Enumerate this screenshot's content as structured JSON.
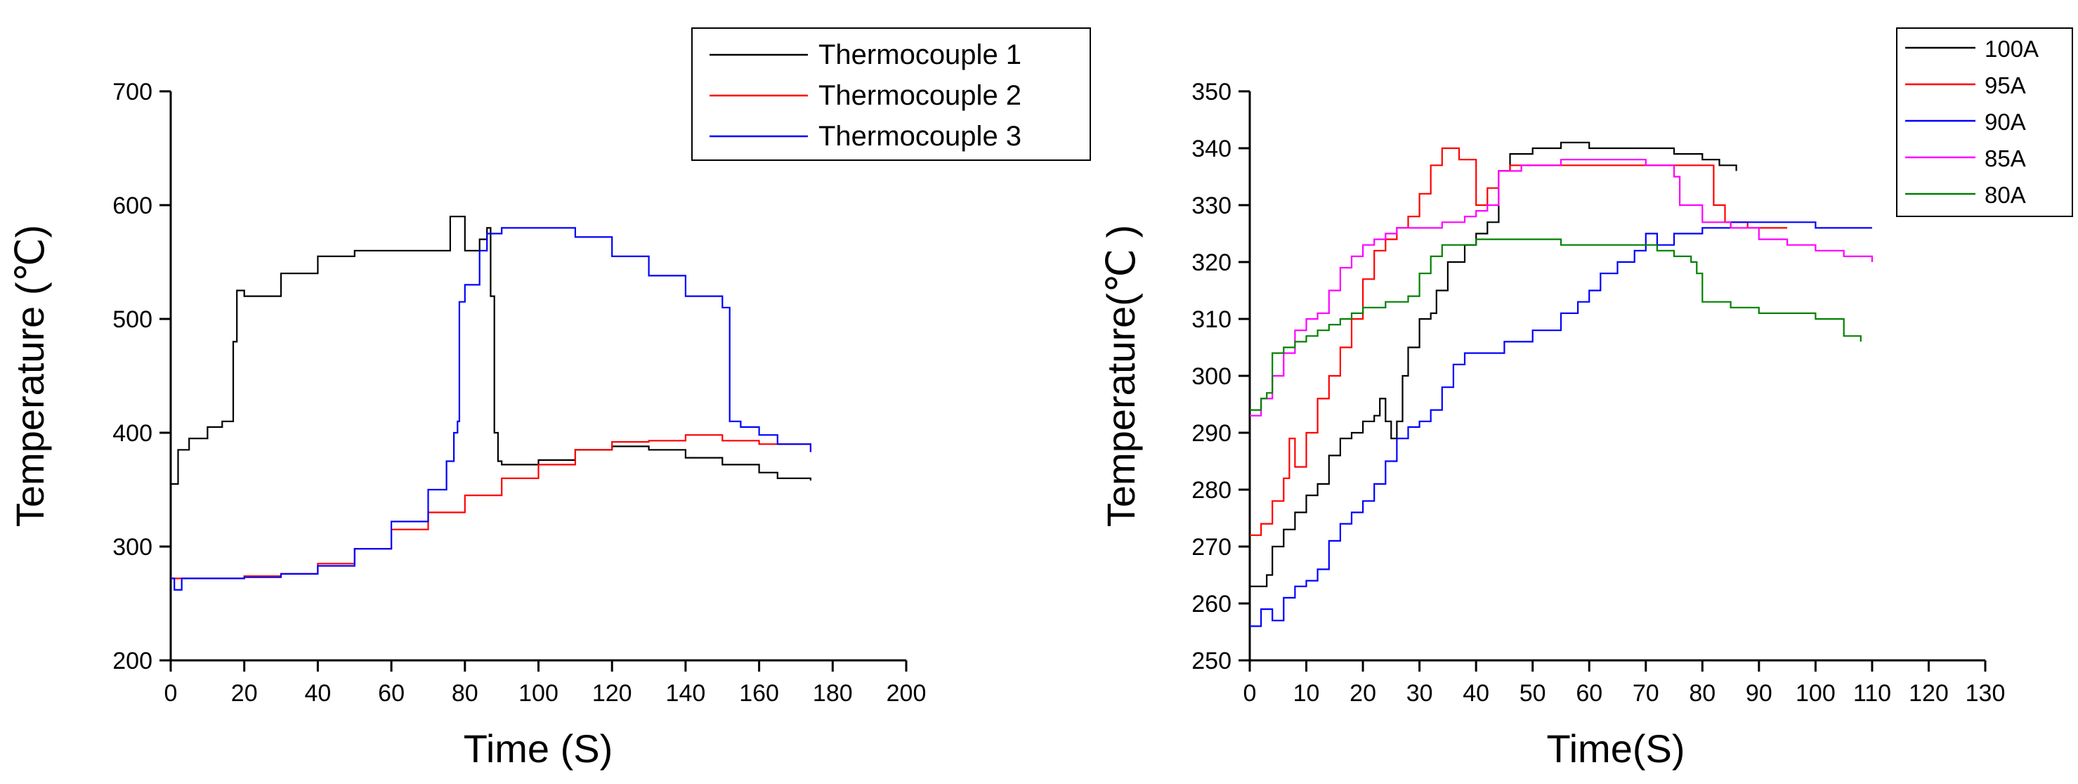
{
  "chart_data": [
    {
      "type": "line",
      "xlabel": "Time (S)",
      "ylabel": "Temperature (℃)",
      "xlim": [
        0,
        200
      ],
      "ylim": [
        200,
        700
      ],
      "xticks": [
        "0",
        "20",
        "40",
        "60",
        "80",
        "100",
        "120",
        "140",
        "160",
        "180",
        "200"
      ],
      "yticks": [
        "200",
        "300",
        "400",
        "500",
        "600",
        "700"
      ],
      "legend_position": "top-right",
      "series": [
        {
          "name": "Thermocouple 1",
          "color": "#000000",
          "x": [
            0,
            2,
            5,
            10,
            14,
            16,
            17,
            18,
            20,
            30,
            40,
            50,
            60,
            70,
            76,
            80,
            84,
            86,
            87,
            88,
            89,
            90,
            100,
            110,
            120,
            130,
            140,
            150,
            160,
            165,
            174
          ],
          "y": [
            355,
            385,
            395,
            405,
            410,
            410,
            480,
            525,
            520,
            540,
            555,
            560,
            560,
            560,
            590,
            560,
            570,
            580,
            520,
            400,
            375,
            372,
            376,
            385,
            388,
            385,
            378,
            372,
            365,
            360,
            358
          ]
        },
        {
          "name": "Thermocouple 2",
          "color": "#ff0000",
          "x": [
            0,
            5,
            10,
            20,
            30,
            40,
            50,
            60,
            70,
            80,
            90,
            100,
            110,
            120,
            130,
            140,
            150,
            160,
            174
          ],
          "y": [
            272,
            272,
            272,
            274,
            276,
            285,
            298,
            315,
            330,
            345,
            360,
            372,
            385,
            392,
            393,
            398,
            393,
            390,
            383
          ]
        },
        {
          "name": "Thermocouple 3",
          "color": "#0000ff",
          "x": [
            0,
            1,
            3,
            5,
            10,
            20,
            30,
            40,
            50,
            60,
            70,
            75,
            77,
            78,
            78.5,
            80,
            84,
            86,
            90,
            100,
            105,
            110,
            120,
            130,
            140,
            150,
            151,
            152,
            155,
            160,
            165,
            174
          ],
          "y": [
            272,
            262,
            272,
            272,
            272,
            273,
            276,
            283,
            298,
            322,
            350,
            375,
            400,
            410,
            515,
            530,
            560,
            575,
            580,
            580,
            580,
            572,
            555,
            538,
            520,
            510,
            510,
            410,
            405,
            398,
            390,
            383
          ]
        }
      ]
    },
    {
      "type": "line",
      "xlabel": "Time(S)",
      "ylabel": "Temperature(℃ )",
      "xlim": [
        0,
        130
      ],
      "ylim": [
        250,
        350
      ],
      "xticks": [
        "0",
        "10",
        "20",
        "30",
        "40",
        "50",
        "60",
        "70",
        "80",
        "90",
        "100",
        "110",
        "120",
        "130"
      ],
      "yticks": [
        "250",
        "260",
        "270",
        "280",
        "290",
        "300",
        "310",
        "320",
        "330",
        "340",
        "350"
      ],
      "legend_position": "top-right",
      "series": [
        {
          "name": "100A",
          "color": "#000000",
          "x": [
            0,
            3,
            4,
            6,
            8,
            10,
            12,
            14,
            16,
            18,
            20,
            22,
            23,
            24,
            25,
            26,
            27,
            28,
            30,
            32,
            33,
            35,
            38,
            40,
            42,
            44,
            46,
            50,
            55,
            60,
            65,
            70,
            75,
            80,
            83,
            86
          ],
          "y": [
            263,
            265,
            270,
            273,
            276,
            279,
            281,
            286,
            289,
            290,
            292,
            293,
            296,
            292,
            289,
            292,
            300,
            305,
            310,
            311,
            315,
            320,
            323,
            325,
            327,
            336,
            339,
            340,
            341,
            340,
            340,
            340,
            339,
            338,
            337,
            336
          ]
        },
        {
          "name": "95A",
          "color": "#ff0000",
          "x": [
            0,
            2,
            4,
            6,
            7,
            8,
            10,
            12,
            14,
            16,
            18,
            20,
            22,
            24,
            26,
            28,
            30,
            32,
            34,
            36,
            37,
            38,
            40,
            42,
            44,
            46,
            50,
            55,
            60,
            65,
            70,
            75,
            80,
            82,
            84,
            88,
            95
          ],
          "y": [
            272,
            274,
            278,
            282,
            289,
            284,
            290,
            296,
            300,
            305,
            310,
            317,
            322,
            324,
            326,
            328,
            332,
            337,
            340,
            340,
            338,
            338,
            330,
            333,
            336,
            337,
            337,
            337,
            337,
            337,
            337,
            337,
            337,
            330,
            327,
            326,
            326
          ]
        },
        {
          "name": "90A",
          "color": "#0000ff",
          "x": [
            0,
            2,
            4,
            6,
            8,
            10,
            12,
            14,
            16,
            18,
            20,
            22,
            24,
            26,
            28,
            30,
            32,
            34,
            36,
            38,
            40,
            45,
            50,
            55,
            58,
            60,
            62,
            65,
            68,
            70,
            72,
            75,
            80,
            85,
            90,
            95,
            100,
            105,
            108,
            110
          ],
          "y": [
            256,
            259,
            257,
            261,
            263,
            264,
            266,
            271,
            274,
            276,
            278,
            281,
            285,
            289,
            291,
            292,
            294,
            298,
            302,
            304,
            304,
            306,
            308,
            311,
            313,
            315,
            318,
            320,
            322,
            325,
            323,
            325,
            326,
            327,
            327,
            327,
            326,
            326,
            326,
            326
          ]
        },
        {
          "name": "85A",
          "color": "#ff00ff",
          "x": [
            0,
            2,
            4,
            6,
            8,
            10,
            12,
            14,
            16,
            18,
            20,
            22,
            24,
            26,
            28,
            30,
            34,
            38,
            40,
            42,
            44,
            48,
            55,
            60,
            65,
            70,
            74,
            75,
            76,
            80,
            85,
            90,
            95,
            100,
            105,
            110
          ],
          "y": [
            293,
            296,
            300,
            304,
            308,
            310,
            311,
            315,
            319,
            321,
            323,
            324,
            325,
            326,
            326,
            326,
            327,
            328,
            329,
            330,
            336,
            337,
            338,
            338,
            338,
            337,
            337,
            335,
            330,
            327,
            326,
            324,
            323,
            322,
            321,
            320
          ]
        },
        {
          "name": "80A",
          "color": "#008000",
          "x": [
            0,
            2,
            3,
            4,
            6,
            8,
            10,
            12,
            14,
            16,
            18,
            20,
            22,
            24,
            26,
            28,
            30,
            32,
            34,
            36,
            40,
            45,
            50,
            55,
            60,
            65,
            70,
            72,
            75,
            78,
            79,
            80,
            85,
            90,
            95,
            100,
            105,
            108
          ],
          "y": [
            294,
            296,
            297,
            304,
            305,
            306,
            307,
            308,
            309,
            310,
            311,
            312,
            312,
            313,
            313,
            314,
            318,
            321,
            323,
            323,
            324,
            324,
            324,
            323,
            323,
            323,
            323,
            322,
            321,
            320,
            318,
            313,
            312,
            311,
            311,
            310,
            307,
            306
          ]
        }
      ]
    }
  ]
}
